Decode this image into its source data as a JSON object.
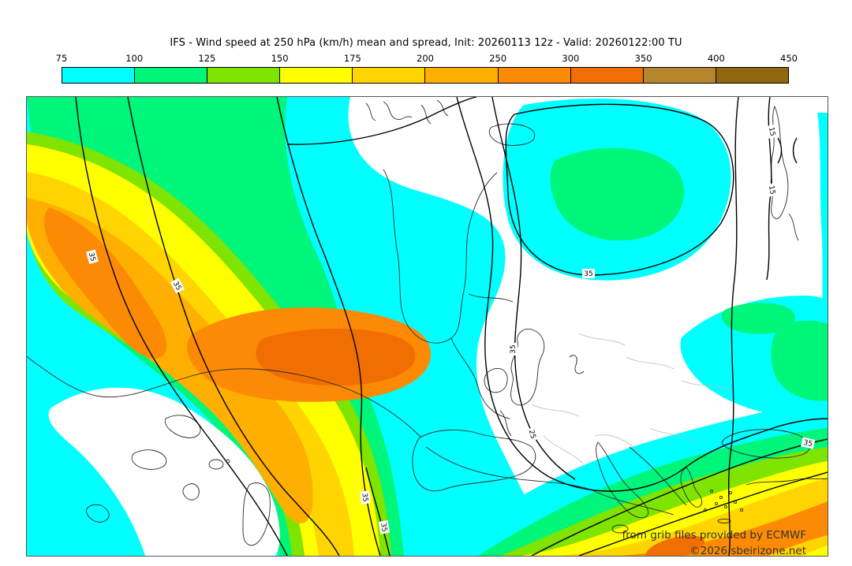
{
  "title": "IFS - Wind speed at 250 hPa (km/h) mean and spread, Init: 20260113 12z - Valid: 20260122:00 TU",
  "colorbar": {
    "ticks": [
      "75",
      "100",
      "125",
      "150",
      "175",
      "200",
      "250",
      "300",
      "350",
      "400",
      "450"
    ],
    "segments": [
      {
        "range": "75-100",
        "color": "#00FFFF"
      },
      {
        "range": "100-125",
        "color": "#00F57B"
      },
      {
        "range": "125-150",
        "color": "#7EE400"
      },
      {
        "range": "150-175",
        "color": "#FFFF00"
      },
      {
        "range": "175-200",
        "color": "#FFD400"
      },
      {
        "range": "200-250",
        "color": "#FFAF00"
      },
      {
        "range": "250-300",
        "color": "#FC8A04"
      },
      {
        "range": "300-350",
        "color": "#F06E02"
      },
      {
        "range": "350-400",
        "color": "#B5862B"
      },
      {
        "range": "400-450",
        "color": "#8F670F"
      }
    ]
  },
  "map": {
    "field": "wind speed mean (filled colors) and ensemble spread (black contours)",
    "contour_labels": [
      "35",
      "35",
      "35",
      "35",
      "35",
      "25",
      "35",
      "15",
      "15",
      "35"
    ],
    "attribution_line1": "from grib files provided by ECMWF",
    "attribution_line2": "©2026 sbeirizone.net"
  }
}
